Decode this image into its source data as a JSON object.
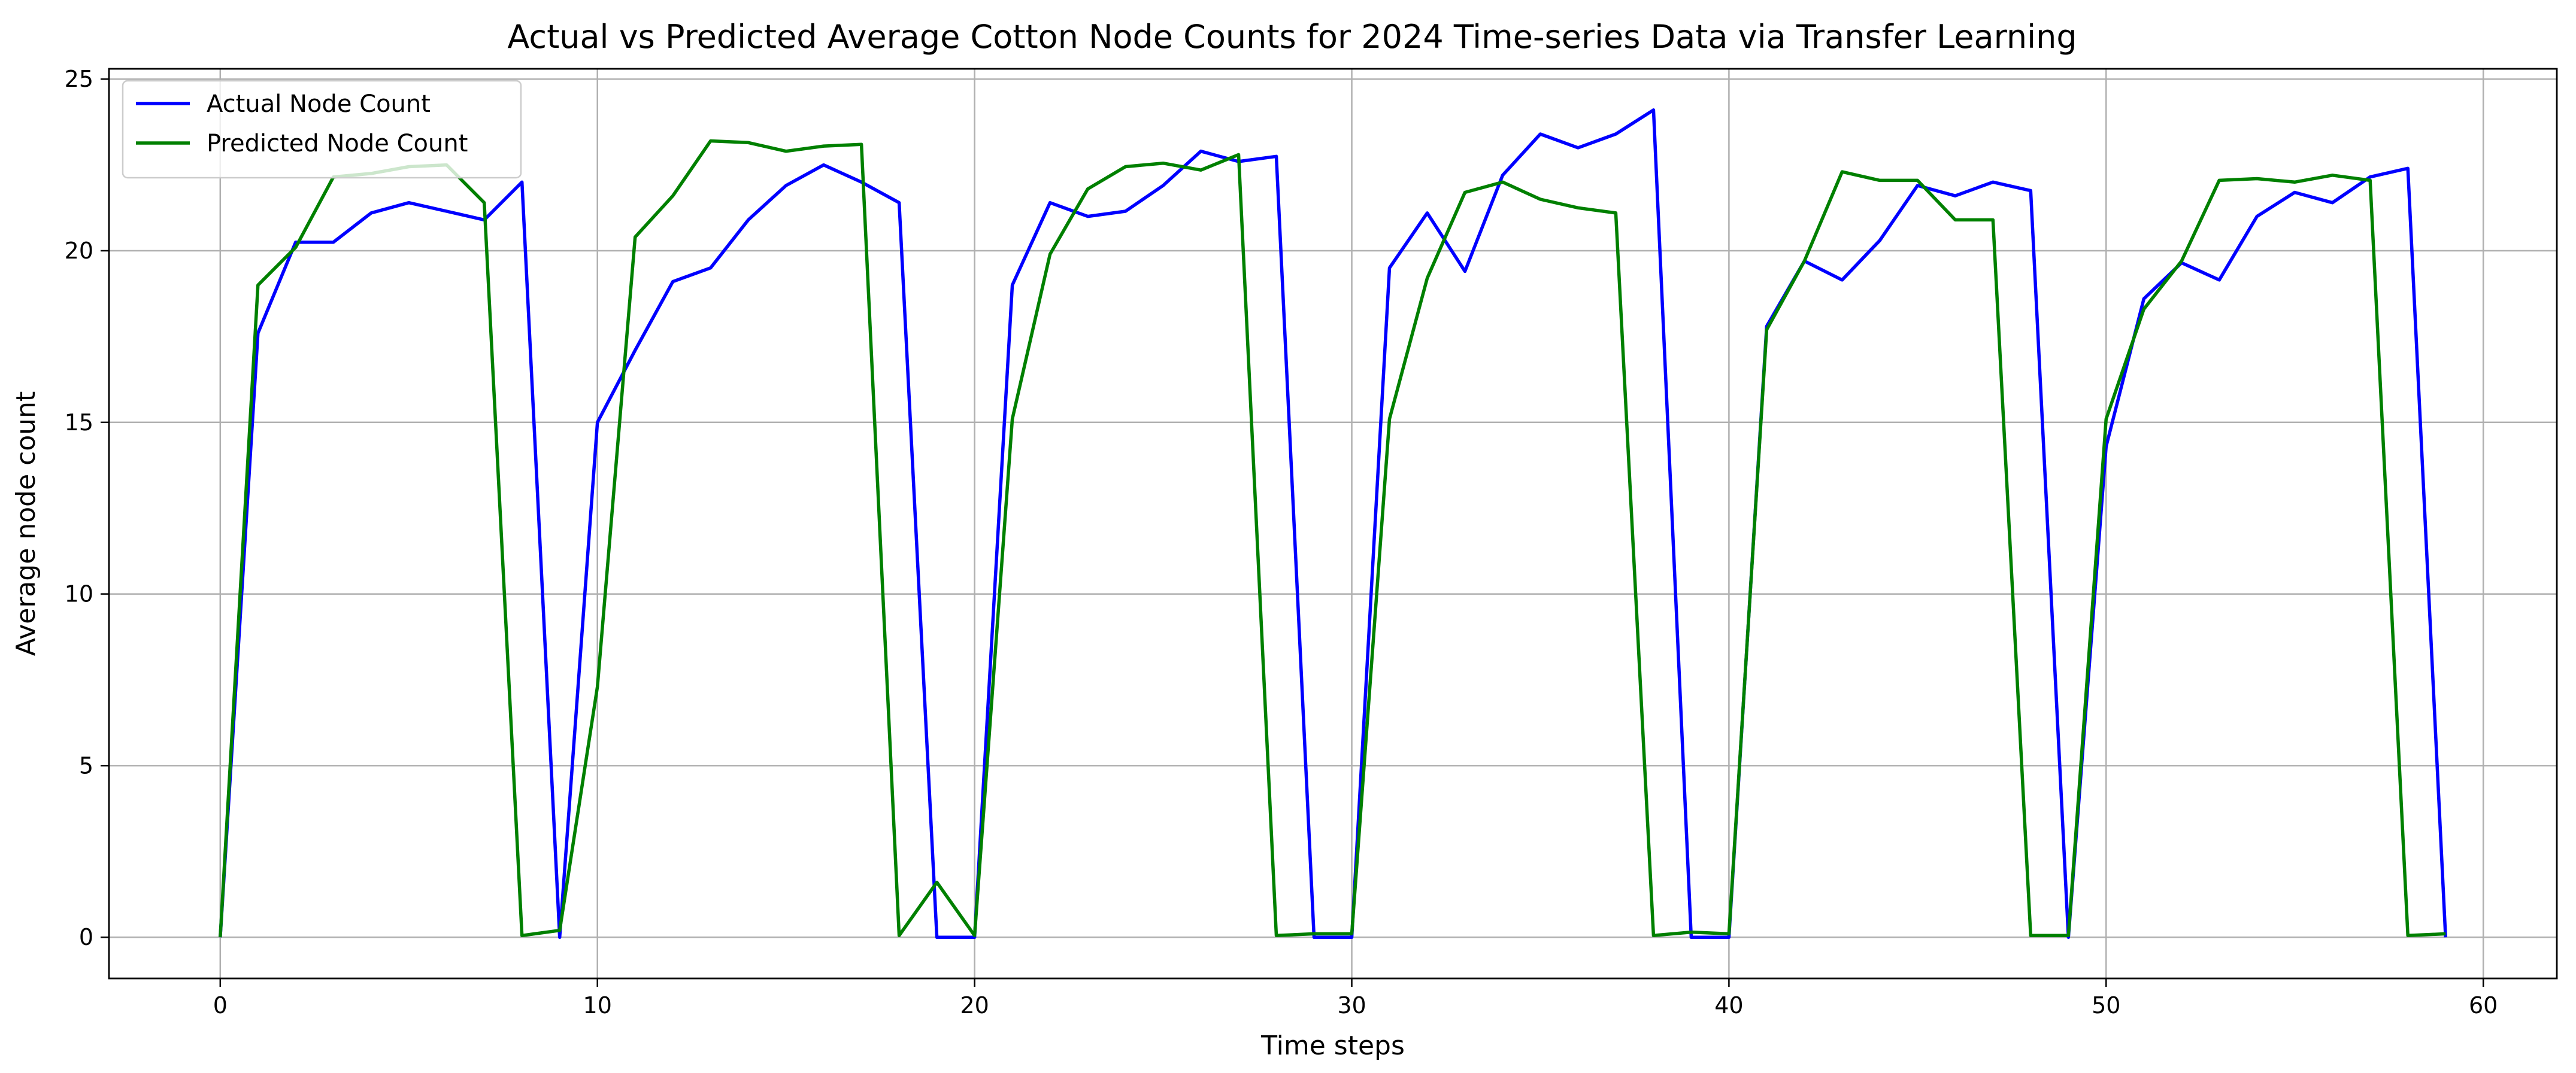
{
  "chart_data": {
    "type": "line",
    "title": "Actual vs Predicted Average Cotton Node Counts for 2024 Time-series Data via Transfer Learning",
    "xlabel": "Time steps",
    "ylabel": "Average node count",
    "xlim": [
      -2.95,
      61.95
    ],
    "ylim": [
      -1.2,
      25.3
    ],
    "xticks": [
      0,
      10,
      20,
      30,
      40,
      50,
      60
    ],
    "yticks": [
      0,
      5,
      10,
      15,
      20,
      25
    ],
    "grid": true,
    "legend_position": "upper-left",
    "x": [
      0,
      1,
      2,
      3,
      4,
      5,
      6,
      7,
      8,
      9,
      10,
      11,
      12,
      13,
      14,
      15,
      16,
      17,
      18,
      19,
      20,
      21,
      22,
      23,
      24,
      25,
      26,
      27,
      28,
      29,
      30,
      31,
      32,
      33,
      34,
      35,
      36,
      37,
      38,
      39,
      40,
      41,
      42,
      43,
      44,
      45,
      46,
      47,
      48,
      49,
      50,
      51,
      52,
      53,
      54,
      55,
      56,
      57,
      58,
      59
    ],
    "series": [
      {
        "name": "Actual Node Count",
        "color": "#0000ff",
        "values": [
          0.0,
          17.6,
          20.25,
          20.25,
          21.1,
          21.4,
          21.15,
          20.9,
          22.0,
          0.0,
          15.0,
          17.1,
          19.1,
          19.5,
          20.9,
          21.9,
          22.5,
          22.0,
          21.4,
          0.0,
          0.0,
          19.0,
          21.4,
          21.0,
          21.15,
          21.9,
          22.9,
          22.6,
          22.75,
          0.0,
          0.0,
          19.5,
          21.1,
          19.4,
          22.2,
          23.4,
          23.0,
          23.4,
          24.1,
          0.0,
          0.0,
          17.8,
          19.7,
          19.15,
          20.3,
          21.9,
          21.6,
          22.0,
          21.75,
          0.0,
          14.3,
          18.6,
          19.65,
          19.15,
          21.0,
          21.7,
          21.4,
          22.15,
          22.4,
          0.0
        ]
      },
      {
        "name": "Predicted Node Count",
        "color": "#008000",
        "values": [
          0.0,
          19.0,
          20.1,
          22.15,
          22.25,
          22.45,
          22.5,
          21.4,
          0.05,
          0.2,
          7.3,
          20.4,
          21.6,
          23.2,
          23.15,
          22.9,
          23.05,
          23.1,
          0.05,
          1.6,
          0.05,
          15.1,
          19.9,
          21.8,
          22.45,
          22.55,
          22.35,
          22.8,
          0.05,
          0.1,
          0.1,
          15.1,
          19.2,
          21.7,
          22.0,
          21.5,
          21.25,
          21.1,
          0.05,
          0.15,
          0.1,
          17.7,
          19.7,
          22.3,
          22.05,
          22.05,
          20.9,
          20.9,
          0.05,
          0.05,
          15.1,
          18.3,
          19.7,
          22.05,
          22.1,
          22.0,
          22.2,
          22.05,
          0.05,
          0.1
        ]
      }
    ]
  }
}
